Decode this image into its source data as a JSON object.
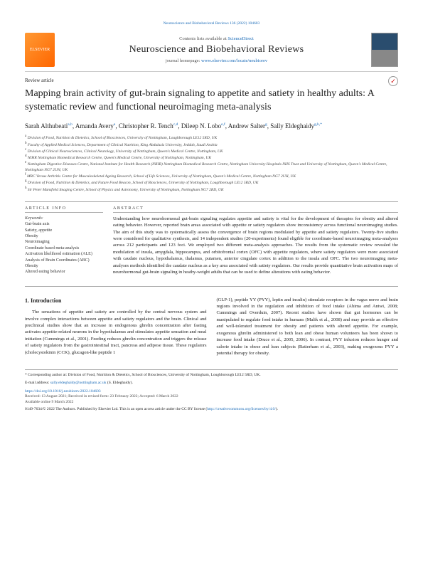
{
  "top_meta": "Neuroscience and Biobehavioral Reviews 136 (2022) 104603",
  "publisher_logo": "ELSEVIER",
  "contents_prefix": "Contents lists available at ",
  "contents_link": "ScienceDirect",
  "journal_title": "Neuroscience and Biobehavioral Reviews",
  "homepage_prefix": "journal homepage: ",
  "homepage_link": "www.elsevier.com/locate/neubiorev",
  "article_type": "Review article",
  "title": "Mapping brain activity of gut-brain signaling to appetite and satiety in healthy adults: A systematic review and functional neuroimaging meta-analysis",
  "authors_html": "Sarah Althubeati<sup>a,b</sup>, Amanda Avery<sup>a</sup>, Christopher R. Tench<sup>c,d</sup>, Dileep N. Lobo<sup>e,f</sup>, Andrew Salter<sup>g</sup>, Sally Eldeghaidy<sup>g,h,*</sup>",
  "affiliations": [
    "a Division of Food, Nutrition & Dietetics, School of Biosciences, University of Nottingham, Loughborough LE12 5RD, UK",
    "b Faculty of Applied Medical Sciences, Department of Clinical Nutrition, King Abdulaziz University, Jeddah, Saudi Arabia",
    "c Division of Clinical Neurosciences, Clinical Neurology, University of Nottingham, Queen's Medical Centre, Nottingham, UK",
    "d NIHR Nottingham Biomedical Research Centre, Queen's Medical Centre, University of Nottingham, Nottingham, UK",
    "e Nottingham Digestive Diseases Centre, National Institute for Health Research (NIHR) Nottingham Biomedical Research Centre, Nottingham University Hospitals NHS Trust and University of Nottingham, Queen's Medical Centre, Nottingham NG7 2UH, UK",
    "f MRC Versus Arthritis Centre for Musculoskeletal Ageing Research, School of Life Sciences, University of Nottingham, Queen's Medical Centre, Nottingham NG7 2UH, UK",
    "g Division of Food, Nutrition & Dietetics, and Future Food Beacon, School of Biosciences, University of Nottingham, Loughborough LE12 5RD, UK",
    "h Sir Peter Mansfield Imaging Centre, School of Physics and Astronomy, University of Nottingham, Nottingham NG7 2RD, UK"
  ],
  "article_info_heading": "ARTICLE INFO",
  "abstract_heading": "ABSTRACT",
  "keywords_label": "Keywords:",
  "keywords": [
    "Gut-brain axis",
    "Satiety, appetite",
    "Obesity",
    "Neuroimaging",
    "Coordinate based meta-analysis",
    "Activation likelihood estimation (ALE)",
    "Analysis of Brain Coordinates (ABC)",
    "Obesity",
    "Altered eating behavior"
  ],
  "abstract": "Understanding how neurohormonal gut-brain signaling regulates appetite and satiety is vital for the development of therapies for obesity and altered eating behavior. However, reported brain areas associated with appetite or satiety regulators show inconsistency across functional neuroimaging studies. The aim of this study was to systematically assess the convergence of brain regions modulated by appetite and satiety regulators. Twenty-five studies were considered for qualitative synthesis, and 14 independent studies (20-experiments) found eligible for coordinate-based neuroimaging meta-analyses across 212 participants and 123 foci. We employed two different meta-analysis approaches. The results from the systematic review revealed the modulation of insula, amygdala, hippocampus, and orbitofrontal cortex (OFC) with appetite regulators, where satiety regulators were more associated with caudate nucleus, hypothalamus, thalamus, putamen, anterior cingulate cortex in addition to the insula and OFC. The two neuroimaging meta-analyses methods identified the caudate nucleus as a key area associated with satiety regulators. Our results provide quantitative brain activation maps of neurohormonal gut-brain signaling in heathy-weight adults that can be used to define alterations with eating behavior.",
  "intro_heading": "1. Introduction",
  "intro_col1": "The sensations of appetite and satiety are controlled by the central nervous system and involve complex interactions between appetite and satiety regulators and the brain. Clinical and preclinical studies show that an increase in endogenous ghrelin concentration after fasting activates appetite-related neurons in the hypothalamus and stimulates appetite sensation and meal initiation (Cummings et al., 2001). Feeding reduces ghrelin concentration and triggers the release of satiety regulators from the gastrointestinal tract, pancreas and adipose tissue. These regulators (cholecystokinin (CCK), glucagon-like peptide 1",
  "intro_col2": "(GLP-1), peptide YY (PYY), leptin and insulin) stimulate receptors in the vagus nerve and brain regions involved in the regulation and inhibition of food intake (Ahima and Antwi, 2008; Cummings and Overduin, 2007). Recent studies have shown that gut hormones can be manipulated to regulate food intake in humans (Malik et al., 2008) and may provide an effective and well-tolerated treatment for obesity and patients with altered appetite. For example, exogenous ghrelin administered to both lean and obese human volunteers has been shown to increase food intake (Druce et al., 2005, 2006). In contrast, PYY infusion reduces hunger and calorie intake in obese and lean subjects (Batterham et al., 2003), making exogenous PYY a potential therapy for obesity.",
  "corresponding": "* Corresponding author at: Division of Food, Nutrition & Dietetics, School of Biosciences, University of Nottingham, Loughborough LE12 5RD, UK.",
  "email_label": "E-mail address: ",
  "email": "sally.eldeghaidy@nottingham.ac.uk",
  "email_suffix": " (S. Eldeghaidy).",
  "doi": "https://doi.org/10.1016/j.neubiorev.2022.104603",
  "received": "Received: 13 August 2021; Received in revised form: 23 February 2022; Accepted: 6 March 2022",
  "available": "Available online 9 March 2022",
  "copyright_prefix": "0149-7634/© 2022 The Authors. Published by Elsevier Ltd. This is an open access article under the CC BY license (",
  "copyright_link": "http://creativecommons.org/licenses/by/4.0/",
  "copyright_suffix": ")."
}
